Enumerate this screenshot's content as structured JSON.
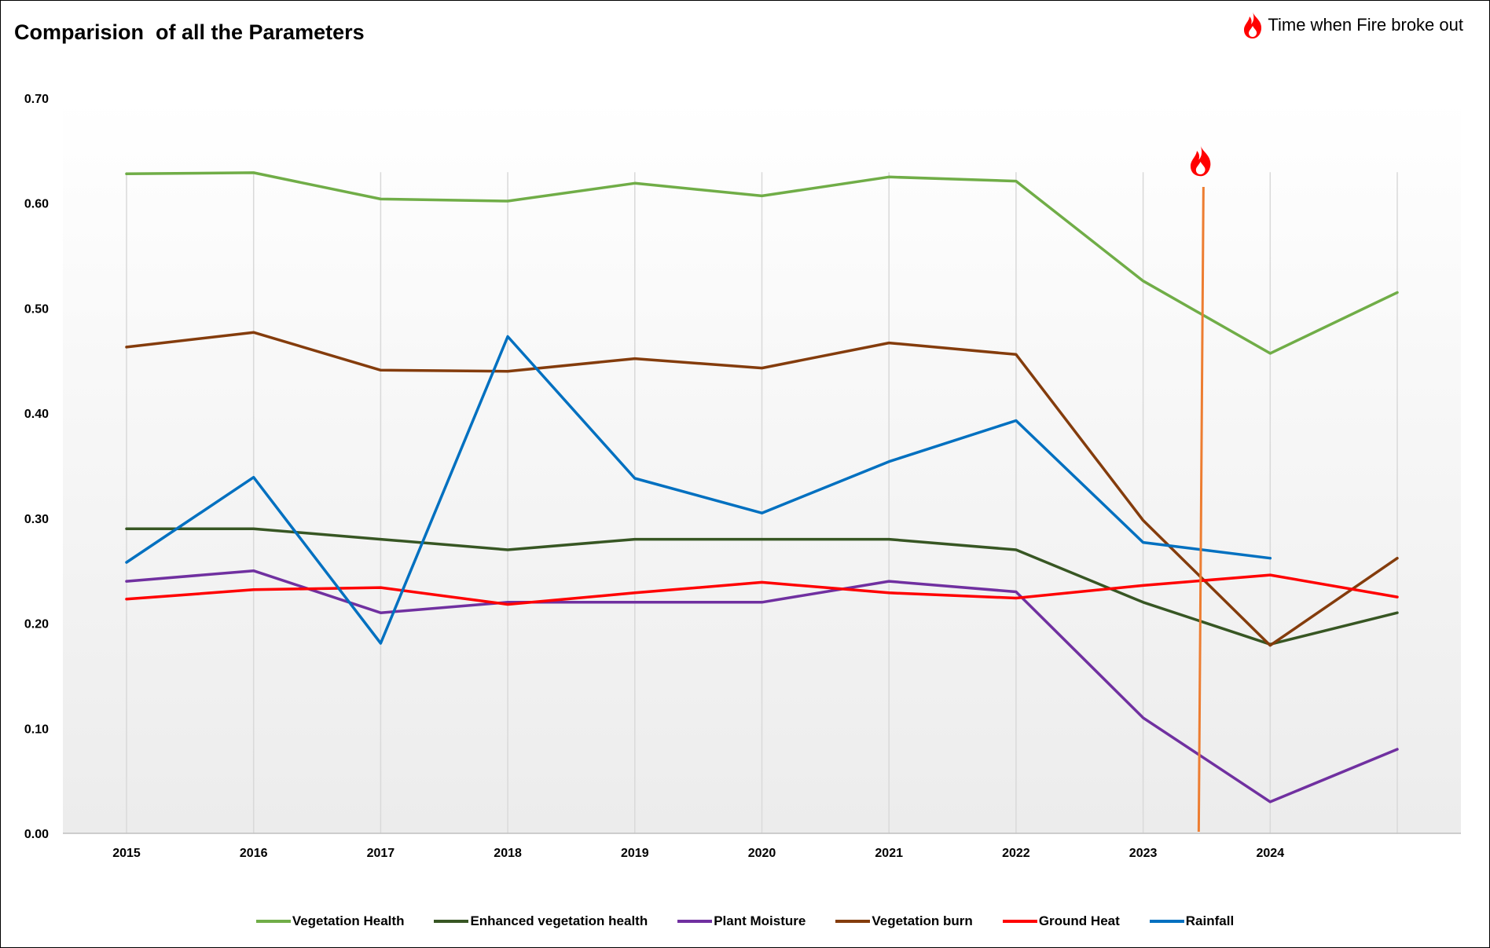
{
  "chart_data": {
    "type": "line",
    "title": "Comparision  of all the Parameters",
    "annotation": {
      "label": "Time when Fire broke out",
      "icon": "fire-icon",
      "x_position": 2023.45
    },
    "categories": [
      "2015",
      "2016",
      "2017",
      "2018",
      "2019",
      "2020",
      "2021",
      "2022",
      "2023",
      "2024",
      ""
    ],
    "x": [
      2015,
      2016,
      2017,
      2018,
      2019,
      2020,
      2021,
      2022,
      2023,
      2024,
      2025
    ],
    "ylim": [
      0,
      0.7
    ],
    "yticks": [
      "0.00",
      "0.10",
      "0.20",
      "0.30",
      "0.40",
      "0.50",
      "0.60",
      "0.70"
    ],
    "ytick_values": [
      0,
      0.1,
      0.2,
      0.3,
      0.4,
      0.5,
      0.6,
      0.7
    ],
    "grid": "vertical",
    "legend_position": "bottom",
    "series": [
      {
        "name": "Vegetation Health",
        "color": "#70ad47",
        "values": [
          0.628,
          0.629,
          0.604,
          0.602,
          0.619,
          0.607,
          0.625,
          0.621,
          0.526,
          0.457,
          0.515
        ]
      },
      {
        "name": "Enhanced vegetation health",
        "color": "#375623",
        "values": [
          0.29,
          0.29,
          0.28,
          0.27,
          0.28,
          0.28,
          0.28,
          0.27,
          0.22,
          0.18,
          0.21
        ]
      },
      {
        "name": "Plant Moisture",
        "color": "#7030a0",
        "values": [
          0.24,
          0.25,
          0.21,
          0.22,
          0.22,
          0.22,
          0.24,
          0.23,
          0.11,
          0.03,
          0.08
        ]
      },
      {
        "name": "Vegetation burn",
        "color": "#843c0c",
        "values": [
          0.463,
          0.477,
          0.441,
          0.44,
          0.452,
          0.443,
          0.467,
          0.456,
          0.298,
          0.179,
          0.262
        ]
      },
      {
        "name": "Ground Heat",
        "color": "#ff0000",
        "values": [
          0.223,
          0.232,
          0.234,
          0.218,
          0.229,
          0.239,
          0.229,
          0.224,
          0.236,
          0.246,
          0.225
        ]
      },
      {
        "name": "Rainfall",
        "color": "#0070c0",
        "values": [
          0.258,
          0.339,
          0.181,
          0.473,
          0.338,
          0.305,
          0.354,
          0.393,
          0.277,
          0.262,
          null
        ]
      }
    ],
    "colors": {
      "fire_line": "#ed7d31",
      "fire_flame": "#ff0000",
      "grid": "#d9d9d9",
      "axis": "#bfbfbf"
    }
  }
}
